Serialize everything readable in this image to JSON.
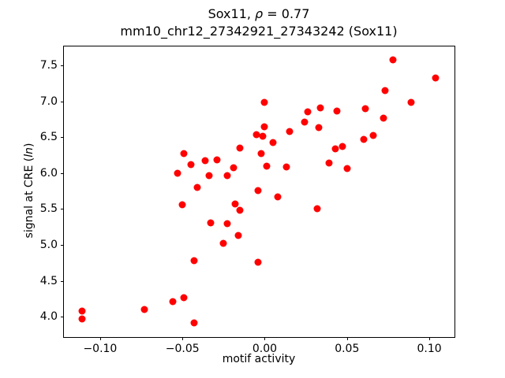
{
  "title": {
    "prefix": "Sox11, ",
    "rho_symbol": "ρ",
    "rho_value": " = 0.77",
    "line2": "mm10_chr12_27342921_27343242 (Sox11)"
  },
  "axis_labels": {
    "xlabel": "motif activity",
    "ylabel_prefix": "signal at CRE (",
    "ylabel_italic": "ln",
    "ylabel_suffix": ")"
  },
  "chart_data": {
    "type": "scatter",
    "title": "Sox11, ρ = 0.77",
    "subtitle": "mm10_chr12_27342921_27343242 (Sox11)",
    "xlabel": "motif activity",
    "ylabel": "signal at CRE (ln)",
    "legend": "none",
    "grid": false,
    "marker_color": "#ff0000",
    "marker_diameter_px": 9,
    "xlim": [
      -0.122,
      0.1153
    ],
    "ylim": [
      3.717,
      7.764
    ],
    "x_ticks": [
      -0.1,
      -0.05,
      0.0,
      0.05,
      0.1
    ],
    "x_tick_labels": [
      "−0.10",
      "−0.05",
      "0.00",
      "0.05",
      "0.10"
    ],
    "y_ticks": [
      4.0,
      4.5,
      5.0,
      5.5,
      6.0,
      6.5,
      7.0,
      7.5
    ],
    "y_tick_labels": [
      "4.0",
      "4.5",
      "5.0",
      "5.5",
      "6.0",
      "6.5",
      "7.0",
      "7.5"
    ],
    "points": [
      [
        -0.111,
        4.08
      ],
      [
        -0.111,
        3.97
      ],
      [
        -0.073,
        4.1
      ],
      [
        -0.056,
        4.21
      ],
      [
        -0.049,
        4.26
      ],
      [
        -0.053,
        6.0
      ],
      [
        -0.05,
        5.56
      ],
      [
        -0.049,
        6.27
      ],
      [
        -0.045,
        6.12
      ],
      [
        -0.043,
        4.78
      ],
      [
        -0.043,
        3.91
      ],
      [
        -0.041,
        5.8
      ],
      [
        -0.036,
        6.17
      ],
      [
        -0.034,
        5.97
      ],
      [
        -0.033,
        5.31
      ],
      [
        -0.029,
        6.19
      ],
      [
        -0.025,
        5.02
      ],
      [
        -0.023,
        5.97
      ],
      [
        -0.023,
        5.3
      ],
      [
        -0.019,
        6.07
      ],
      [
        -0.018,
        5.57
      ],
      [
        -0.016,
        5.13
      ],
      [
        -0.015,
        6.35
      ],
      [
        -0.015,
        5.48
      ],
      [
        -0.005,
        6.54
      ],
      [
        -0.004,
        5.76
      ],
      [
        -0.004,
        4.76
      ],
      [
        -0.002,
        6.27
      ],
      [
        -0.001,
        6.51
      ],
      [
        0.0,
        6.99
      ],
      [
        0.0,
        6.64
      ],
      [
        0.001,
        6.1
      ],
      [
        0.005,
        6.43
      ],
      [
        0.008,
        5.67
      ],
      [
        0.013,
        6.09
      ],
      [
        0.015,
        6.58
      ],
      [
        0.024,
        6.71
      ],
      [
        0.026,
        6.85
      ],
      [
        0.032,
        5.5
      ],
      [
        0.033,
        6.63
      ],
      [
        0.034,
        6.91
      ],
      [
        0.039,
        6.14
      ],
      [
        0.043,
        6.34
      ],
      [
        0.044,
        6.87
      ],
      [
        0.047,
        6.37
      ],
      [
        0.05,
        6.06
      ],
      [
        0.06,
        6.47
      ],
      [
        0.061,
        6.9
      ],
      [
        0.066,
        6.53
      ],
      [
        0.072,
        6.77
      ],
      [
        0.073,
        7.15
      ],
      [
        0.078,
        7.58
      ],
      [
        0.089,
        6.99
      ],
      [
        0.104,
        7.32
      ]
    ]
  }
}
